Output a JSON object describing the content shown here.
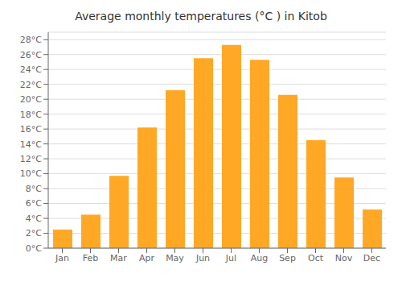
{
  "chart_data": {
    "type": "bar",
    "title": "Average monthly temperatures (°C ) in Kitob",
    "categories": [
      "Jan",
      "Feb",
      "Mar",
      "Apr",
      "May",
      "Jun",
      "Jul",
      "Aug",
      "Sep",
      "Oct",
      "Nov",
      "Dec"
    ],
    "values": [
      2.5,
      4.5,
      9.7,
      16.2,
      21.2,
      25.5,
      27.3,
      25.3,
      20.6,
      14.5,
      9.5,
      5.2
    ],
    "color": "#FFA826",
    "ylim": [
      0,
      29
    ],
    "yticks": [
      {
        "value": 0,
        "label": "0°C"
      },
      {
        "value": 2,
        "label": "2°C"
      },
      {
        "value": 4,
        "label": "4°C"
      },
      {
        "value": 6,
        "label": "6°C"
      },
      {
        "value": 8,
        "label": "8°C"
      },
      {
        "value": 10,
        "label": "10°C"
      },
      {
        "value": 12,
        "label": "12°C"
      },
      {
        "value": 14,
        "label": "14°C"
      },
      {
        "value": 16,
        "label": "16°C"
      },
      {
        "value": 18,
        "label": "18°C"
      },
      {
        "value": 20,
        "label": "20°C"
      },
      {
        "value": 22,
        "label": "22°C"
      },
      {
        "value": 24,
        "label": "24°C"
      },
      {
        "value": 26,
        "label": "26°C"
      },
      {
        "value": 28,
        "label": "28°C"
      }
    ],
    "grid": true
  }
}
